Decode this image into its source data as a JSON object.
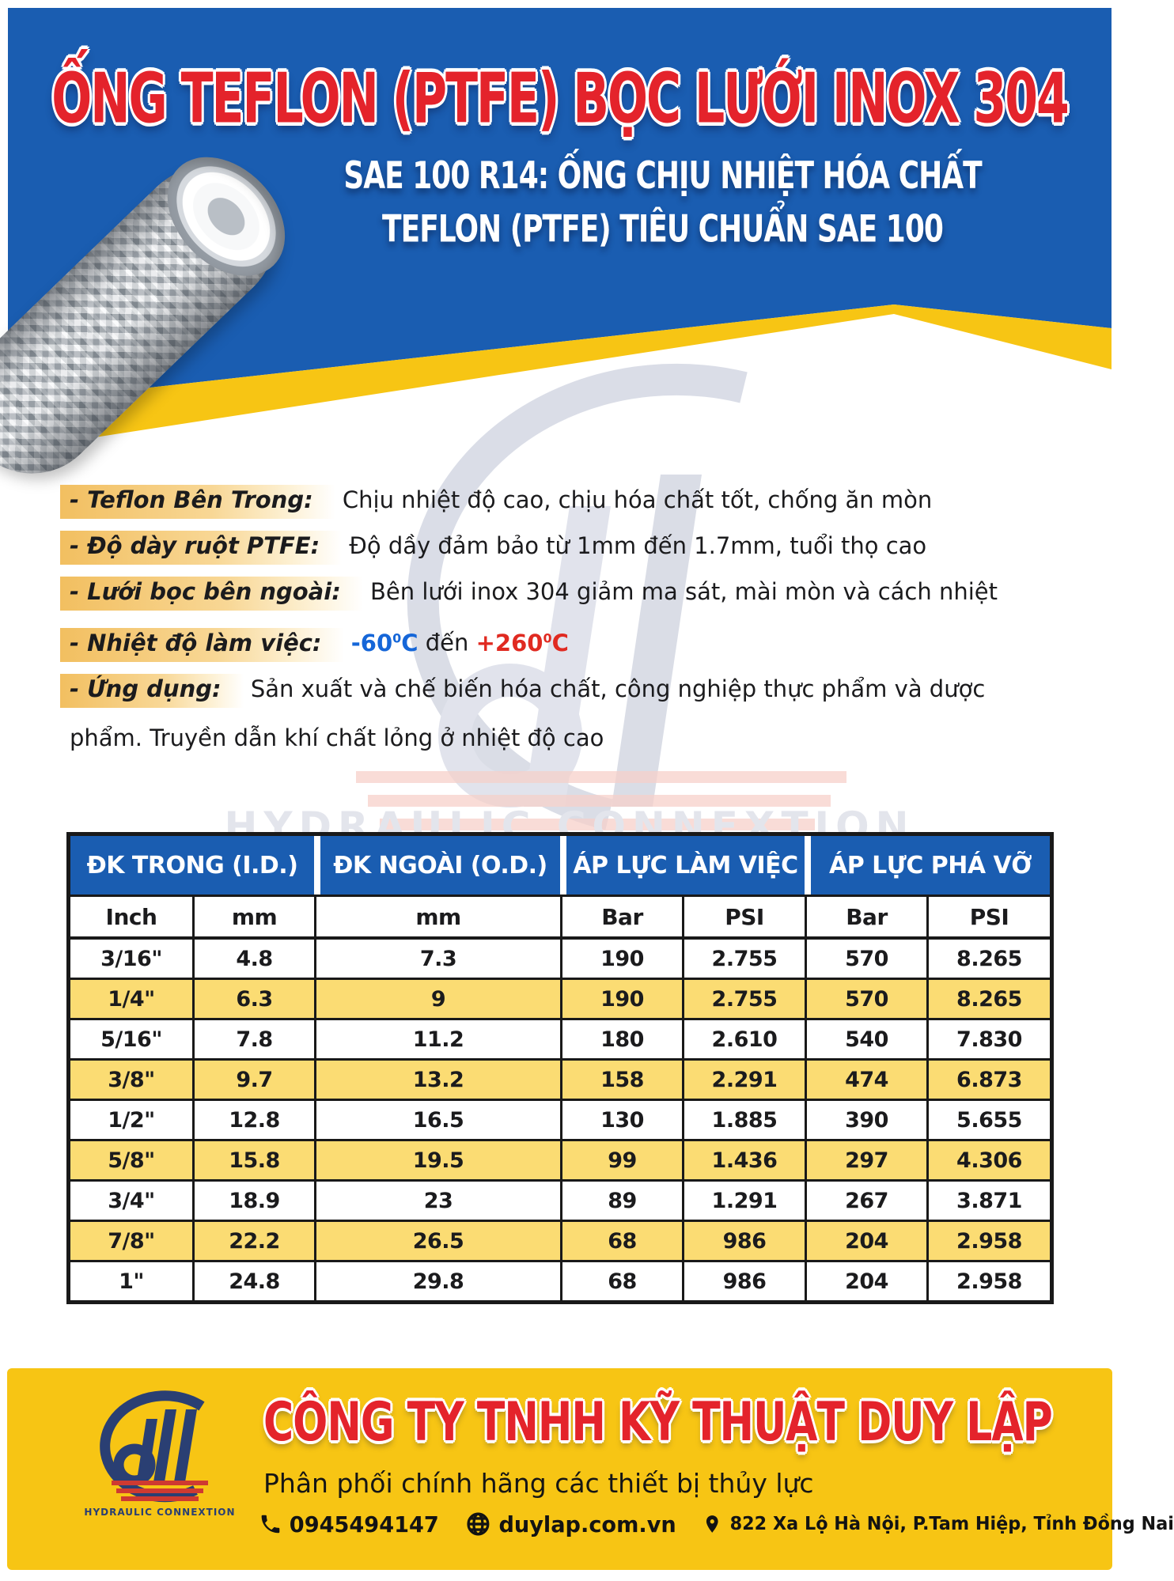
{
  "header": {
    "title": "ỐNG TEFLON (PTFE) BỌC LƯỚI INOX 304",
    "subtitle_line1": "SAE 100 R14: ỐNG CHỊU NHIỆT HÓA CHẤT",
    "subtitle_line2": "TEFLON (PTFE) TIÊU CHUẨN SAE 100"
  },
  "features": {
    "items": [
      {
        "label": "- Teflon Bên Trong:",
        "text": "Chịu nhiệt độ cao, chịu hóa chất tốt, chống ăn mòn"
      },
      {
        "label": "- Độ dày ruột PTFE:",
        "text": "Độ dầy đảm bảo từ 1mm đến 1.7mm, tuổi thọ cao"
      },
      {
        "label": "- Lưới bọc bên ngoài:",
        "text": "Bên lưới inox 304 giảm ma sát, mài mòn và cách nhiệt"
      },
      {
        "label": "- Nhiệt độ làm việc:",
        "temperature": true
      },
      {
        "label": "- Ứng dụng:",
        "text": "Sản xuất và chế biến hóa chất, công nghiệp thực phẩm và dược"
      }
    ],
    "temperature": {
      "low": "-60",
      "low_sup": "0",
      "low_unit": "C",
      "connector": "đến",
      "high": "+260",
      "high_sup": "0",
      "high_unit": "C"
    },
    "continuation": "phẩm. Truyền dẫn khí chất lỏng ở nhiệt độ cao"
  },
  "table": {
    "groups": [
      {
        "label": "ĐK TRONG (I.D.)",
        "span": 2
      },
      {
        "label": "ĐK NGOÀI (O.D.)",
        "span": 1
      },
      {
        "label": "ÁP LỰC LÀM VIỆC",
        "span": 2
      },
      {
        "label": "ÁP LỰC PHÁ VỠ",
        "span": 2
      }
    ],
    "units": [
      "Inch",
      "mm",
      "mm",
      "Bar",
      "PSI",
      "Bar",
      "PSI"
    ],
    "rows": [
      {
        "cells": [
          "3/16\"",
          "4.8",
          "7.3",
          "190",
          "2.755",
          "570",
          "8.265"
        ],
        "highlighted": false
      },
      {
        "cells": [
          "1/4\"",
          "6.3",
          "9",
          "190",
          "2.755",
          "570",
          "8.265"
        ],
        "highlighted": true
      },
      {
        "cells": [
          "5/16\"",
          "7.8",
          "11.2",
          "180",
          "2.610",
          "540",
          "7.830"
        ],
        "highlighted": false
      },
      {
        "cells": [
          "3/8\"",
          "9.7",
          "13.2",
          "158",
          "2.291",
          "474",
          "6.873"
        ],
        "highlighted": true
      },
      {
        "cells": [
          "1/2\"",
          "12.8",
          "16.5",
          "130",
          "1.885",
          "390",
          "5.655"
        ],
        "highlighted": false
      },
      {
        "cells": [
          "5/8\"",
          "15.8",
          "19.5",
          "99",
          "1.436",
          "297",
          "4.306"
        ],
        "highlighted": true
      },
      {
        "cells": [
          "3/4\"",
          "18.9",
          "23",
          "89",
          "1.291",
          "267",
          "3.871"
        ],
        "highlighted": false
      },
      {
        "cells": [
          "7/8\"",
          "22.2",
          "26.5",
          "68",
          "986",
          "204",
          "2.958"
        ],
        "highlighted": true
      },
      {
        "cells": [
          "1\"",
          "24.8",
          "29.8",
          "68",
          "986",
          "204",
          "2.958"
        ],
        "highlighted": false
      }
    ]
  },
  "footer": {
    "company": "CÔNG TY TNHH KỸ THUẬT DUY LẬP",
    "tagline": "Phân phối chính hãng các thiết bị thủy lực",
    "phone": "0945494147",
    "website": "duylap.com.vn",
    "address": "822 Xa Lộ Hà Nội, P.Tam Hiệp, Tỉnh Đồng Nai",
    "logo_text": "HYDRAULIC CONNEXTION"
  },
  "colors": {
    "blue": "#1a5db1",
    "yellow": "#f7c514",
    "row_yellow": "#fbdc73",
    "red": "#e4232b",
    "temp_cold": "#1566d8",
    "temp_hot": "#e02a21",
    "highlight_start": "#f2bf60",
    "text_dark": "#1b1b1d"
  }
}
